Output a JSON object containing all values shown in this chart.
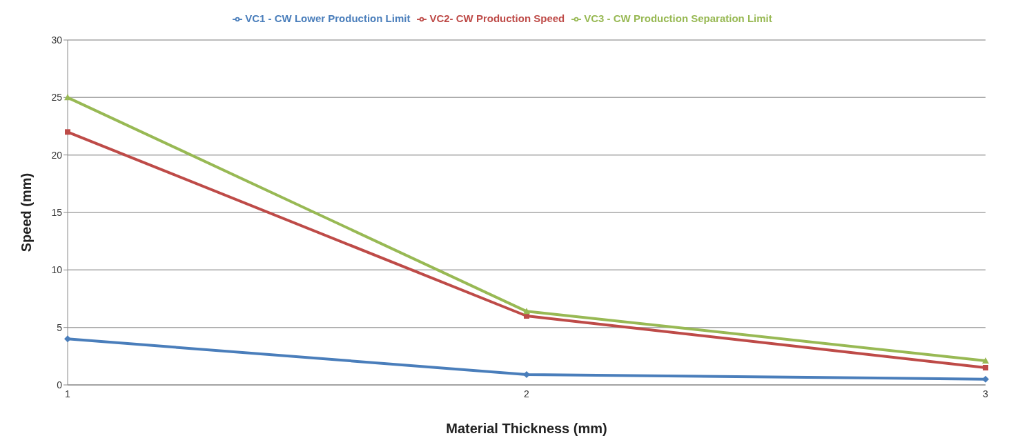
{
  "chart_data": {
    "type": "line",
    "xlabel": "Material Thickness (mm)",
    "ylabel": "Speed (mm)",
    "categories": [
      "1",
      "2",
      "3"
    ],
    "series": [
      {
        "name": "VC1 - CW Lower Production Limit",
        "color": "#4a7ebb",
        "values": [
          4,
          0.9,
          0.5
        ],
        "marker": "diamond"
      },
      {
        "name": "VC2- CW Production Speed",
        "color": "#be4b48",
        "values": [
          22,
          6,
          1.5
        ],
        "marker": "square"
      },
      {
        "name": "VC3 - CW Production Separation Limit",
        "color": "#98b954",
        "values": [
          25,
          6.4,
          2.1
        ],
        "marker": "triangle"
      }
    ],
    "ylim": [
      0,
      30
    ],
    "yticks": [
      0,
      5,
      10,
      15,
      20,
      25,
      30
    ],
    "grid": "y",
    "legend": "top",
    "line_style": "solid"
  }
}
